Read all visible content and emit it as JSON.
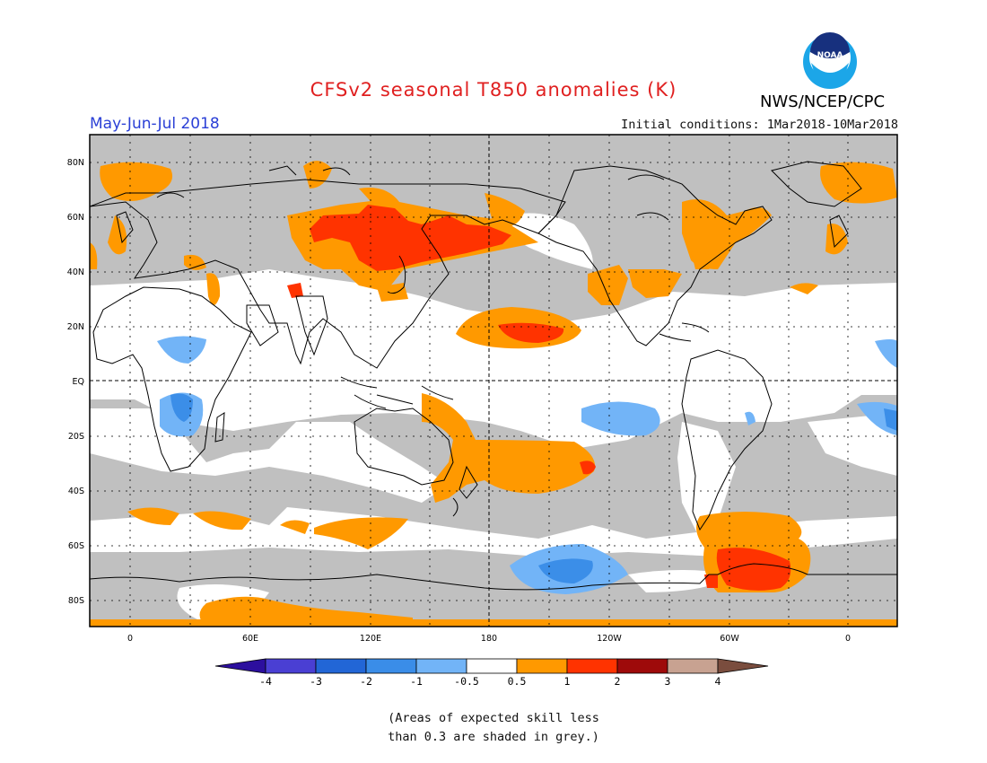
{
  "header": {
    "title": "CFSv2 seasonal T850 anomalies (K)",
    "agency": "NWS/NCEP/CPC",
    "logo_text": "NOAA",
    "period": "May-Jun-Jul 2018",
    "initial_conditions": "Initial conditions: 1Mar2018-10Mar2018"
  },
  "map": {
    "lat_labels": [
      "80N",
      "60N",
      "40N",
      "20N",
      "EQ",
      "20S",
      "40S",
      "60S",
      "80S"
    ],
    "lon_labels": [
      "0",
      "60E",
      "120E",
      "180",
      "120W",
      "60W",
      "0"
    ],
    "land_outline_color": "#000000",
    "anomaly_colors": {
      "grey_low_skill": "#c0c0c0",
      "neutral": "#ffffff",
      "pos_0_5_1": "#ff9900",
      "pos_1_2": "#ff3300",
      "neg_0_5_1": "#72b4f7",
      "neg_1_2": "#3b8ee8"
    }
  },
  "colorbar": {
    "tick_labels": [
      "-4",
      "-3",
      "-2",
      "-1",
      "-0.5",
      "0.5",
      "1",
      "2",
      "3",
      "4"
    ],
    "colors": [
      "#2c0f9e",
      "#4a3fd3",
      "#2266d6",
      "#3a8de8",
      "#72b4f7",
      "#ffffff",
      "#ff9900",
      "#ff3300",
      "#9e0a0a",
      "#c8a291",
      "#7a4d3e"
    ]
  },
  "footnote": {
    "line1": "(Areas of expected skill less",
    "line2": "than 0.3 are shaded in grey.)"
  }
}
